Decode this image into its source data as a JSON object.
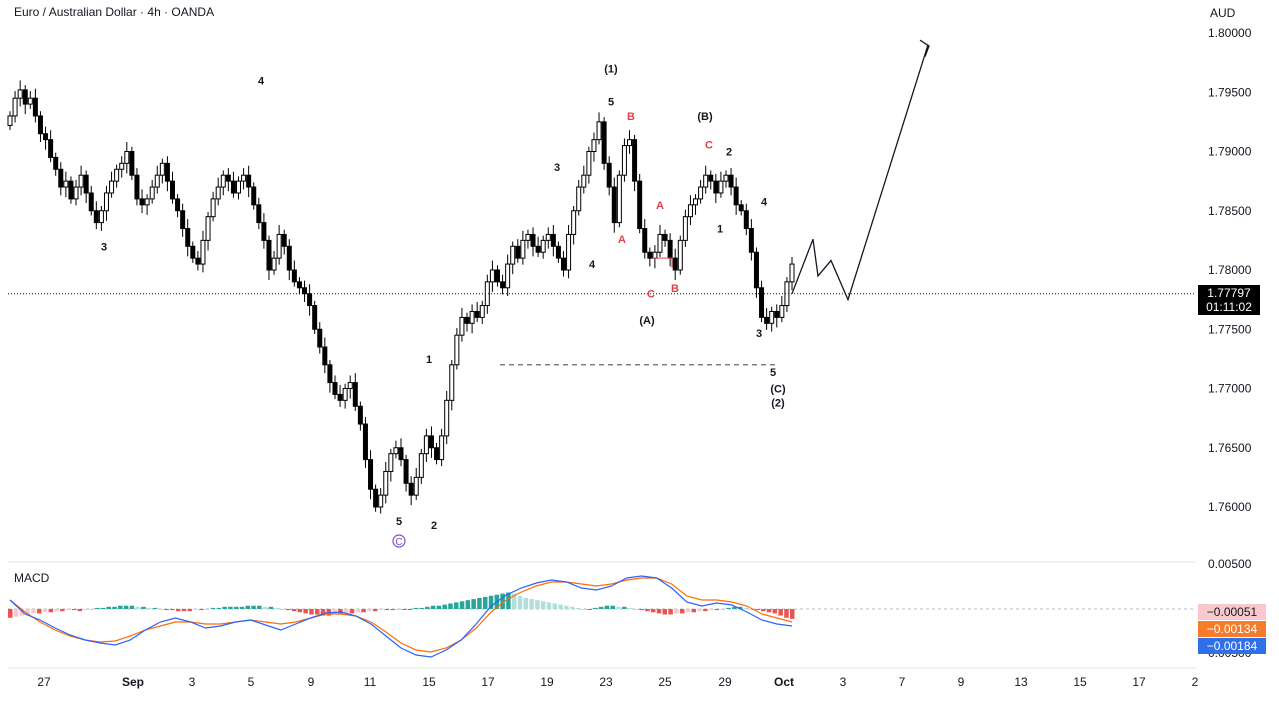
{
  "header": {
    "title": "Euro / Australian Dollar · 4h · OANDA",
    "currency": "AUD"
  },
  "current_price": {
    "value": "1.77797",
    "countdown": "01:11:02"
  },
  "macd": {
    "title": "MACD",
    "histogram_tag": "−0.00051",
    "signal_tag": "−0.00134",
    "macd_tag": "−0.00184",
    "axis_labels": [
      "0.00500",
      "0.00500"
    ],
    "colors": {
      "macd_line": "#2962ff",
      "signal_line": "#ff6d00",
      "hist_up": "#26a69a",
      "hist_down": "#ef5350"
    }
  },
  "chart_data": {
    "type": "candlestick",
    "price_ticks": [
      "1.80000",
      "1.79500",
      "1.79000",
      "1.78500",
      "1.78000",
      "1.77500",
      "1.77000",
      "1.76500",
      "1.76000"
    ],
    "price_range": [
      1.7565,
      1.8013
    ],
    "x_ticks": [
      "27",
      "Sep",
      "3",
      "5",
      "9",
      "11",
      "15",
      "17",
      "19",
      "23",
      "25",
      "29",
      "Oct",
      "3",
      "7",
      "9",
      "13",
      "15",
      "17",
      "2"
    ],
    "candles_close": [
      1.793,
      1.7945,
      1.7952,
      1.794,
      1.7945,
      1.793,
      1.7915,
      1.791,
      1.7895,
      1.7885,
      1.787,
      1.7875,
      1.786,
      1.787,
      1.788,
      1.7865,
      1.785,
      1.784,
      1.785,
      1.7865,
      1.7875,
      1.7885,
      1.789,
      1.79,
      1.788,
      1.786,
      1.7855,
      1.786,
      1.787,
      1.788,
      1.789,
      1.7875,
      1.786,
      1.785,
      1.7835,
      1.782,
      1.781,
      1.7805,
      1.7825,
      1.7845,
      1.786,
      1.787,
      1.788,
      1.7875,
      1.7865,
      1.7875,
      1.788,
      1.787,
      1.7855,
      1.784,
      1.7825,
      1.78,
      1.781,
      1.783,
      1.782,
      1.78,
      1.779,
      1.7785,
      1.778,
      1.777,
      1.775,
      1.7735,
      1.772,
      1.7705,
      1.7695,
      1.769,
      1.77,
      1.7705,
      1.7685,
      1.767,
      1.764,
      1.7615,
      1.76,
      1.761,
      1.763,
      1.7645,
      1.765,
      1.764,
      1.762,
      1.761,
      1.7625,
      1.7645,
      1.766,
      1.765,
      1.764,
      1.766,
      1.769,
      1.772,
      1.7745,
      1.776,
      1.7755,
      1.7765,
      1.776,
      1.777,
      1.779,
      1.78,
      1.779,
      1.7785,
      1.7805,
      1.782,
      1.781,
      1.7825,
      1.783,
      1.782,
      1.7815,
      1.7825,
      1.783,
      1.782,
      1.781,
      1.78,
      1.783,
      1.785,
      1.787,
      1.788,
      1.79,
      1.791,
      1.7925,
      1.789,
      1.787,
      1.784,
      1.788,
      1.7905,
      1.791,
      1.7875,
      1.7835,
      1.7815,
      1.781,
      1.7815,
      1.783,
      1.7825,
      1.781,
      1.78,
      1.7825,
      1.7845,
      1.7855,
      1.786,
      1.787,
      1.788,
      1.7875,
      1.7865,
      1.7875,
      1.788,
      1.787,
      1.7855,
      1.785,
      1.7835,
      1.7815,
      1.7785,
      1.776,
      1.7755,
      1.7765,
      1.776,
      1.777,
      1.779,
      1.7805
    ],
    "annotations_black": [
      {
        "text": "4",
        "x": "Sep 4",
        "price": 1.796
      },
      {
        "text": "3",
        "x": "Aug 30",
        "price": 1.782
      },
      {
        "text": "5",
        "x": "Sep 12",
        "price": 1.7588
      },
      {
        "text": "1",
        "x": "Sep 14",
        "price": 1.7725
      },
      {
        "text": "2",
        "x": "Sep 15",
        "price": 1.7585
      },
      {
        "text": "3",
        "x": "Sep 21",
        "price": 1.7887
      },
      {
        "text": "4",
        "x": "Sep 22",
        "price": 1.7805
      },
      {
        "text": "5",
        "x": "Sep 23",
        "price": 1.7942
      },
      {
        "text": "(1)",
        "x": "Sep 23",
        "price": 1.797
      },
      {
        "text": "(A)",
        "x": "Sep 25",
        "price": 1.7758
      },
      {
        "text": "(B)",
        "x": "Sep 28",
        "price": 1.793
      },
      {
        "text": "2",
        "x": "Sep 29",
        "price": 1.79
      },
      {
        "text": "1",
        "x": "Sep 29",
        "price": 1.7835
      },
      {
        "text": "4",
        "x": "Sep 30",
        "price": 1.7858
      },
      {
        "text": "3",
        "x": "Sep 30",
        "price": 1.7747
      },
      {
        "text": "5",
        "x": "Oct 1",
        "price": 1.7714
      },
      {
        "text": "(C)",
        "x": "Oct 1",
        "price": 1.77
      },
      {
        "text": "(2)",
        "x": "Oct 1",
        "price": 1.7688
      }
    ],
    "annotations_red": [
      {
        "text": "B",
        "x": "Sep 23",
        "price": 1.793
      },
      {
        "text": "A",
        "x": "Sep 23",
        "price": 1.7826
      },
      {
        "text": "C",
        "x": "Sep 24",
        "price": 1.778
      },
      {
        "text": "A",
        "x": "Sep 25",
        "price": 1.7855
      },
      {
        "text": "B",
        "x": "Sep 26",
        "price": 1.7785
      },
      {
        "text": "C",
        "x": "Sep 28",
        "price": 1.7906
      }
    ],
    "circled_label": "C",
    "horizontal_level": 1.772,
    "current_level": 1.778,
    "projection": "up",
    "colors": {
      "candle": "#000000",
      "annotation_red": "#e0404a",
      "circle_label": "#7b4fc4"
    }
  }
}
